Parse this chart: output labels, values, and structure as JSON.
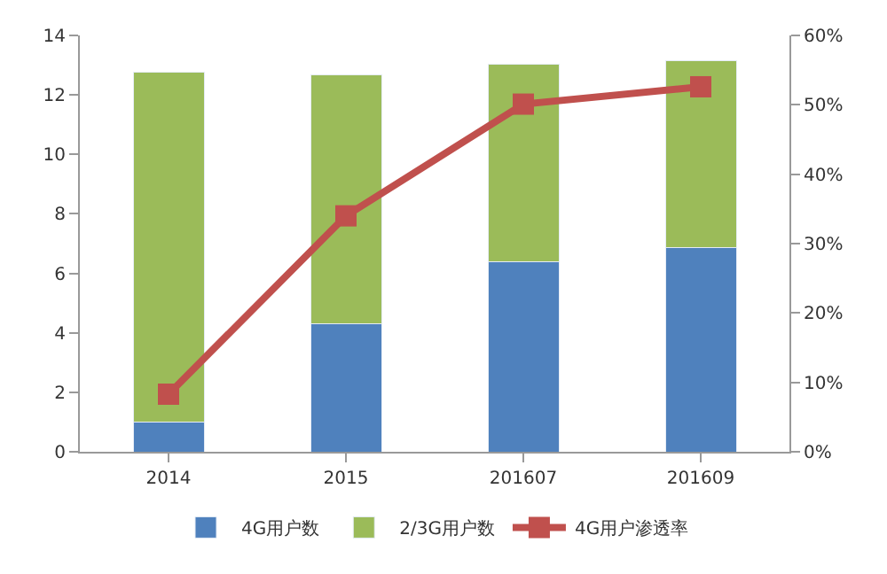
{
  "chart_data": {
    "type": "bar",
    "stacked": true,
    "categories": [
      "2014",
      "2015",
      "201607",
      "201609"
    ],
    "series": [
      {
        "name": "4G用户数",
        "color": "#4f81bd",
        "values": [
          1.0,
          4.3,
          6.4,
          6.87
        ]
      },
      {
        "name": "2/3G用户数",
        "color": "#9bbb59",
        "values": [
          11.76,
          8.37,
          6.64,
          6.28
        ]
      },
      {
        "name": "4G用户渗透率",
        "type": "line",
        "axis": "y2",
        "color": "#c0504d",
        "marker": "square",
        "values": [
          8.3,
          34.0,
          50.1,
          52.6
        ]
      }
    ],
    "ylim": [
      0,
      14
    ],
    "yticks": [
      0,
      2,
      4,
      6,
      8,
      10,
      12,
      14
    ],
    "y2lim": [
      0,
      60
    ],
    "y2ticks": [
      {
        "value": 0,
        "label": "0%"
      },
      {
        "value": 10,
        "label": "10%"
      },
      {
        "value": 20,
        "label": "20%"
      },
      {
        "value": 30,
        "label": "30%"
      },
      {
        "value": 40,
        "label": "40%"
      },
      {
        "value": 50,
        "label": "50%"
      },
      {
        "value": 60,
        "label": "60%"
      }
    ],
    "legend": "bottom"
  }
}
